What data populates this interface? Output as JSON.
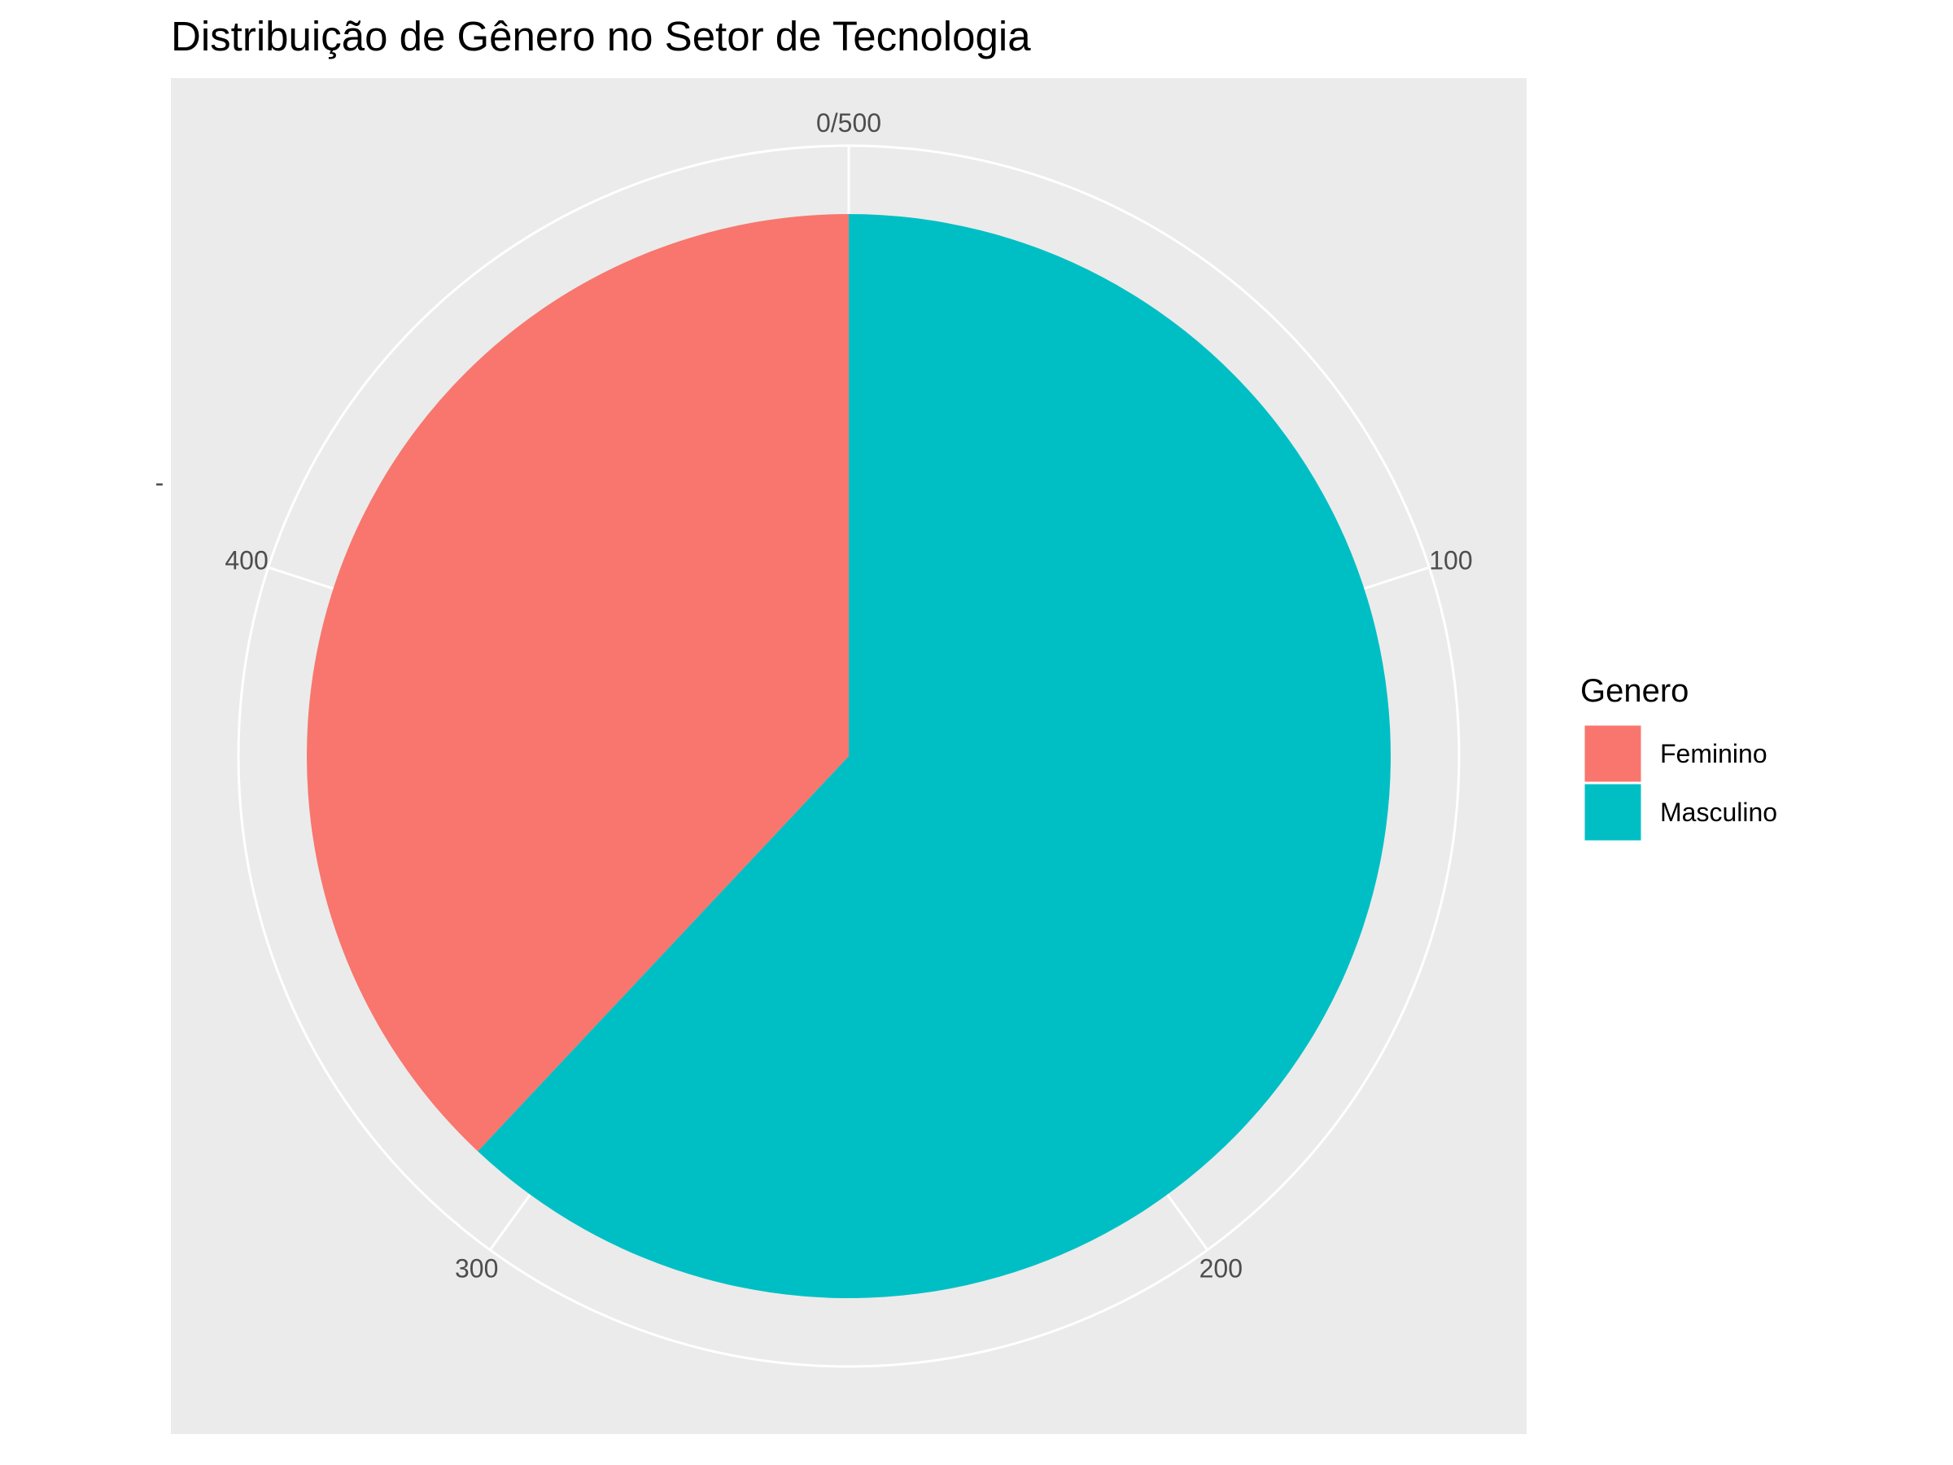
{
  "chart_data": {
    "type": "pie",
    "title": "Distribuição de Gênero no Setor de Tecnologia",
    "y_axis_label": "-",
    "theta_ticks": [
      "0/500",
      "100",
      "200",
      "300",
      "400"
    ],
    "theta_tick_values": [
      0,
      100,
      200,
      300,
      400
    ],
    "theta_max": 500,
    "slices": [
      {
        "label": "Masculino",
        "value": 310,
        "color": "#00BFC4"
      },
      {
        "label": "Feminino",
        "value": 190,
        "color": "#F8766D"
      }
    ],
    "legend": {
      "title": "Genero",
      "placement": "right",
      "entries": [
        {
          "label": "Feminino",
          "color": "#F8766D"
        },
        {
          "label": "Masculino",
          "color": "#00BFC4"
        }
      ]
    },
    "panel_background": "#EBEBEB",
    "grid_color": "#FFFFFF"
  }
}
